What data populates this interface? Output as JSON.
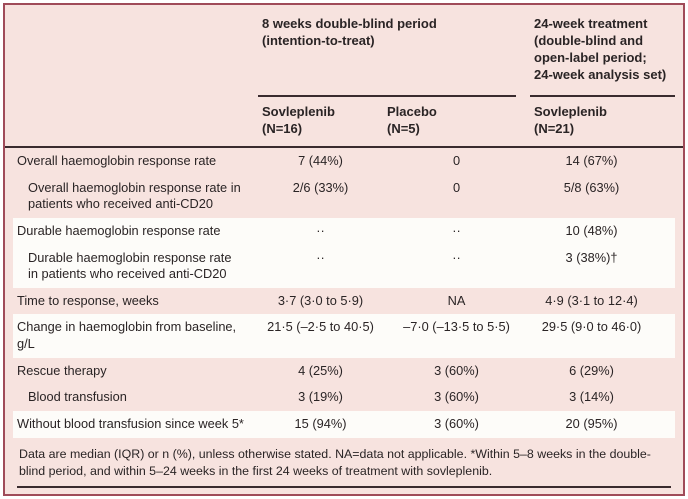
{
  "colors": {
    "background_pink": "#f7e3df",
    "band_white": "#fdfcf9",
    "frame_border": "#a04b59",
    "rule_dark": "#3a2b2e",
    "text": "#2a2425",
    "outer_white": "#ffffff"
  },
  "table": {
    "column_groups": [
      {
        "label": "8 weeks double-blind period\n(intention-to-treat)"
      },
      {
        "label": "24-week treatment\n(double-blind and\nopen-label period;\n24-week analysis set)"
      }
    ],
    "columns": [
      {
        "label": "Sovleplenib\n(N=16)"
      },
      {
        "label": "Placebo\n(N=5)"
      },
      {
        "label": "Sovleplenib\n(N=21)"
      }
    ],
    "rows": [
      {
        "label": "Overall haemoglobin response rate",
        "indent": false,
        "band": "pink",
        "values": [
          "7 (44%)",
          "0",
          "14 (67%)"
        ]
      },
      {
        "label": "Overall haemoglobin response rate in\npatients who received anti-CD20",
        "indent": true,
        "band": "pink",
        "values": [
          "2/6 (33%)",
          "0",
          "5/8 (63%)"
        ]
      },
      {
        "label": "Durable haemoglobin response rate",
        "indent": false,
        "band": "white",
        "values": [
          "··",
          "··",
          "10 (48%)"
        ]
      },
      {
        "label": "Durable haemoglobin response rate\nin patients who received anti-CD20",
        "indent": true,
        "band": "white",
        "values": [
          "··",
          "··",
          "3 (38%)†"
        ]
      },
      {
        "label": "Time to response, weeks",
        "indent": false,
        "band": "pink",
        "values": [
          "3·7 (3·0 to 5·9)",
          "NA",
          "4·9 (3·1 to 12·4)"
        ]
      },
      {
        "label": "Change in haemoglobin from baseline,\ng/L",
        "indent": false,
        "band": "white",
        "values": [
          "21·5 (–2·5 to 40·5)",
          "–7·0 (–13·5 to 5·5)",
          "29·5 (9·0 to 46·0)"
        ]
      },
      {
        "label": "Rescue therapy",
        "indent": false,
        "band": "pink",
        "values": [
          "4 (25%)",
          "3 (60%)",
          "6 (29%)"
        ]
      },
      {
        "label": "Blood transfusion",
        "indent": true,
        "band": "pink",
        "values": [
          "3 (19%)",
          "3 (60%)",
          "3 (14%)"
        ]
      },
      {
        "label": "Without blood transfusion since week 5*",
        "indent": false,
        "band": "white",
        "values": [
          "15 (94%)",
          "3 (60%)",
          "20 (95%)"
        ]
      }
    ],
    "footnote": "Data are median (IQR) or n (%), unless otherwise stated. NA=data not applicable. *Within 5–8 weeks in the double-blind period, and within 5–24 weeks in the first 24 weeks of treatment with sovleplenib."
  }
}
